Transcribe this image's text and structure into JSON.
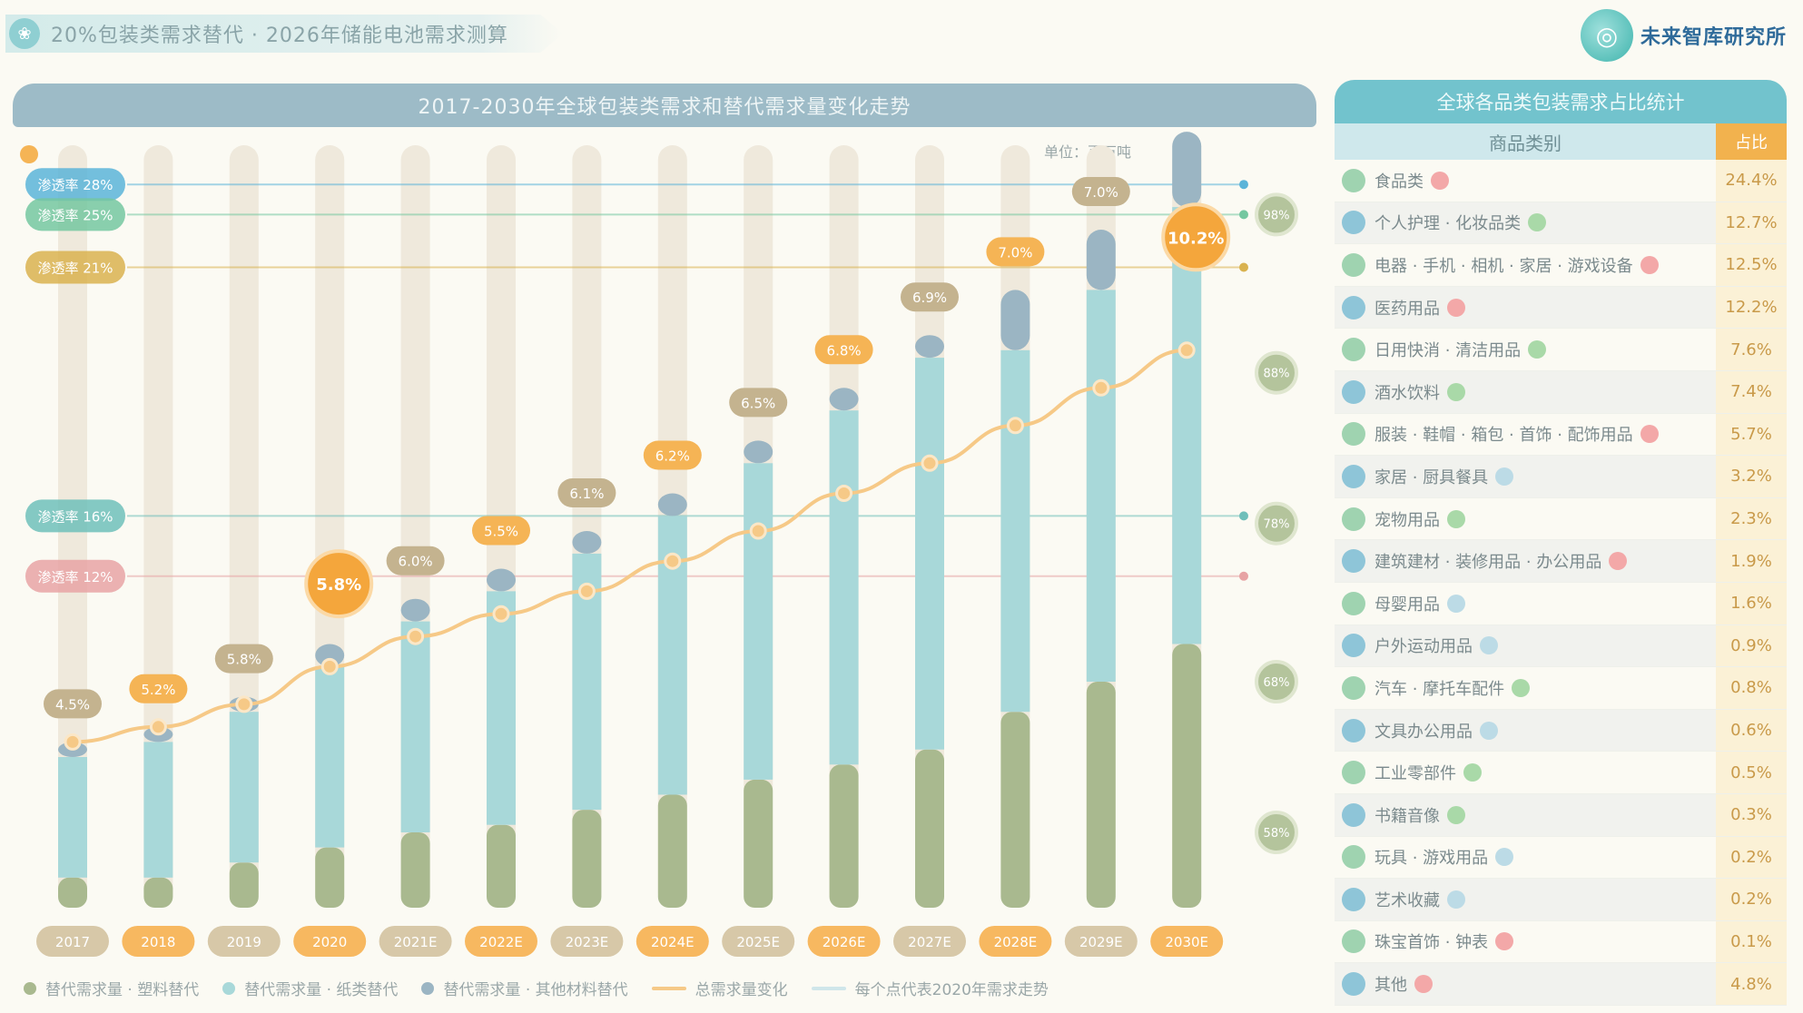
{
  "header": {
    "title": "20%包装类需求替代 · 2026年储能电池需求测算",
    "icon": "leaf-icon"
  },
  "brand": {
    "name": "未来智库研究所",
    "icon": "globe-icon"
  },
  "chart_title": "2017-2030年全球包装类需求和替代需求量变化走势",
  "unit_note": "单位：百万吨",
  "chart_data": {
    "type": "bar",
    "categories": [
      "2017",
      "2018",
      "2019",
      "2020",
      "2021E",
      "2022E",
      "2023E",
      "2024E",
      "2025E",
      "2026E",
      "2027E",
      "2028E",
      "2029E",
      "2030E"
    ],
    "ylim": [
      0,
      100
    ],
    "series": [
      {
        "name": "替代需求量 · 塑料替代",
        "color": "#a9b98f",
        "values": [
          4,
          4,
          6,
          8,
          10,
          11,
          13,
          15,
          17,
          19,
          21,
          26,
          30,
          35
        ]
      },
      {
        "name": "替代需求量 · 纸类替代",
        "color": "#a8d8d9",
        "values": [
          16,
          18,
          20,
          24,
          28,
          31,
          34,
          37,
          42,
          47,
          52,
          48,
          52,
          58
        ]
      },
      {
        "name": "替代需求量 · 其他材料替代",
        "color": "#9bb5c3",
        "values": [
          2,
          2,
          2,
          3,
          3,
          3,
          3,
          3,
          3,
          3,
          3,
          8,
          8,
          10
        ]
      },
      {
        "name": "总需求量",
        "type": "line",
        "color": "#f6c987",
        "values": [
          22,
          24,
          27,
          32,
          36,
          39,
          42,
          46,
          50,
          55,
          59,
          64,
          69,
          74
        ]
      }
    ],
    "top_labels": [
      "4.5%",
      "5.2%",
      "5.8%",
      "",
      "6.0%",
      "5.5%",
      "6.1%",
      "6.2%",
      "6.5%",
      "6.8%",
      "6.9%",
      "7.0%",
      "7.0%",
      ""
    ],
    "highlight_bubbles": [
      {
        "index": 3,
        "label": "5.8%",
        "value": 43
      },
      {
        "index": 13,
        "label": "10.2%",
        "value": 89
      }
    ],
    "reference_lines": [
      {
        "label": "渗透率 28%",
        "value": 96,
        "color": "#5bb4d8"
      },
      {
        "label": "渗透率 25%",
        "value": 92,
        "color": "#74c7a0"
      },
      {
        "label": "渗透率 21%",
        "value": 85,
        "color": "#d9b24f"
      },
      {
        "label": "渗透率 16%",
        "value": 52,
        "color": "#6fbfba"
      },
      {
        "label": "渗透率 12%",
        "value": 44,
        "color": "#e7a3a4"
      }
    ],
    "right_markers": [
      {
        "label": "98%",
        "value": 92
      },
      {
        "label": "88%",
        "value": 71
      },
      {
        "label": "78%",
        "value": 51
      },
      {
        "label": "68%",
        "value": 30
      },
      {
        "label": "58%",
        "value": 10
      }
    ],
    "legend": "bottom"
  },
  "legend": [
    {
      "label": "替代需求量 · 塑料替代",
      "color": "#a9b98f",
      "kind": "dot"
    },
    {
      "label": "替代需求量 · 纸类替代",
      "color": "#a8d8d9",
      "kind": "dot"
    },
    {
      "label": "替代需求量 · 其他材料替代",
      "color": "#9bb5c3",
      "kind": "dot"
    },
    {
      "label": "总需求量变化",
      "color": "#f6c987",
      "kind": "line"
    },
    {
      "label": "每个点代表2020年需求走势",
      "color": "#cfe6ea",
      "kind": "line"
    }
  ],
  "side": {
    "title": "全球各品类包装需求占比统计",
    "col_category": "商品类别",
    "col_value": "占比",
    "rows": [
      {
        "name": "食品类",
        "value": "24.4%",
        "bullet": "#9fd3b0",
        "tag": "#f3a8a8"
      },
      {
        "name": "个人护理 · 化妆品类",
        "value": "12.7%",
        "bullet": "#8ec5d8",
        "tag": "#a9d9a8"
      },
      {
        "name": "电器 · 手机 · 相机 · 家居 · 游戏设备",
        "value": "12.5%",
        "bullet": "#9fd3b0",
        "tag": "#f3a8a8"
      },
      {
        "name": "医药用品",
        "value": "12.2%",
        "bullet": "#8ec5d8",
        "tag": "#f3a8a8"
      },
      {
        "name": "日用快消 · 清洁用品",
        "value": "7.6%",
        "bullet": "#9fd3b0",
        "tag": "#a9d9a8"
      },
      {
        "name": "酒水饮料",
        "value": "7.4%",
        "bullet": "#8ec5d8",
        "tag": "#a9d9a8"
      },
      {
        "name": "服装 · 鞋帽 · 箱包 · 首饰 · 配饰用品",
        "value": "5.7%",
        "bullet": "#9fd3b0",
        "tag": "#f3a8a8"
      },
      {
        "name": "家居 · 厨具餐具",
        "value": "3.2%",
        "bullet": "#8ec5d8",
        "tag": "#bcdbe6"
      },
      {
        "name": "宠物用品",
        "value": "2.3%",
        "bullet": "#9fd3b0",
        "tag": "#a9d9a8"
      },
      {
        "name": "建筑建材 · 装修用品 · 办公用品",
        "value": "1.9%",
        "bullet": "#8ec5d8",
        "tag": "#f3a8a8"
      },
      {
        "name": "母婴用品",
        "value": "1.6%",
        "bullet": "#9fd3b0",
        "tag": "#bcdbe6"
      },
      {
        "name": "户外运动用品",
        "value": "0.9%",
        "bullet": "#8ec5d8",
        "tag": "#bcdbe6"
      },
      {
        "name": "汽车 · 摩托车配件",
        "value": "0.8%",
        "bullet": "#9fd3b0",
        "tag": "#a9d9a8"
      },
      {
        "name": "文具办公用品",
        "value": "0.6%",
        "bullet": "#8ec5d8",
        "tag": "#bcdbe6"
      },
      {
        "name": "工业零部件",
        "value": "0.5%",
        "bullet": "#9fd3b0",
        "tag": "#a9d9a8"
      },
      {
        "name": "书籍音像",
        "value": "0.3%",
        "bullet": "#8ec5d8",
        "tag": "#a9d9a8"
      },
      {
        "name": "玩具 · 游戏用品",
        "value": "0.2%",
        "bullet": "#9fd3b0",
        "tag": "#bcdbe6"
      },
      {
        "name": "艺术收藏",
        "value": "0.2%",
        "bullet": "#8ec5d8",
        "tag": "#bcdbe6"
      },
      {
        "name": "珠宝首饰 · 钟表",
        "value": "0.1%",
        "bullet": "#9fd3b0",
        "tag": "#f3a8a8"
      },
      {
        "name": "其他",
        "value": "4.8%",
        "bullet": "#8ec5d8",
        "tag": "#f3a8a8"
      }
    ]
  }
}
